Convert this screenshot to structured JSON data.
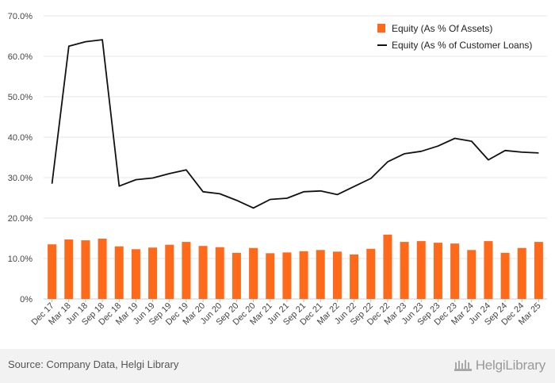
{
  "chart_data": {
    "type": "bar+line",
    "categories": [
      "Dec 17",
      "Mar 18",
      "Jun 18",
      "Sep 18",
      "Dec 18",
      "Mar 19",
      "Jun 19",
      "Sep 19",
      "Dec 19",
      "Mar 20",
      "Jun 20",
      "Sep 20",
      "Dec 20",
      "Mar 21",
      "Jun 21",
      "Sep 21",
      "Dec 21",
      "Mar 22",
      "Jun 22",
      "Sep 22",
      "Dec 22",
      "Mar 23",
      "Jun 23",
      "Sep 23",
      "Dec 23",
      "Mar 24",
      "Jun 24",
      "Sep 24",
      "Dec 24",
      "Mar 25"
    ],
    "series": [
      {
        "name": "Equity (As % Of Assets)",
        "type": "bar",
        "color": "#ff6a1a",
        "values": [
          13.5,
          14.7,
          14.5,
          14.9,
          13.0,
          12.3,
          12.7,
          13.4,
          14.1,
          13.1,
          12.8,
          11.4,
          12.6,
          11.3,
          11.5,
          11.8,
          12.1,
          11.7,
          11.0,
          12.4,
          15.9,
          14.1,
          14.3,
          13.9,
          13.7,
          12.1,
          14.3,
          11.4,
          12.6,
          14.1
        ]
      },
      {
        "name": "Equity (As % of Customer Loans)",
        "type": "line",
        "color": "#111111",
        "values": [
          28.5,
          62.5,
          63.6,
          64.1,
          27.9,
          29.5,
          29.9,
          31.0,
          31.9,
          26.5,
          26.0,
          24.4,
          22.5,
          24.6,
          24.9,
          26.5,
          26.7,
          25.8,
          27.8,
          29.8,
          33.9,
          35.9,
          36.5,
          37.8,
          39.7,
          39.0,
          34.4,
          36.7,
          36.3,
          36.1
        ]
      }
    ],
    "yticks": [
      "0%",
      "10.0%",
      "20.0%",
      "30.0%",
      "40.0%",
      "50.0%",
      "60.0%",
      "70.0%"
    ],
    "ylim": [
      0,
      70
    ],
    "grid": true,
    "legend_position": "top-right"
  },
  "footer": {
    "source": "Source: Company Data, Helgi Library",
    "brand": "HelgiLibrary"
  }
}
